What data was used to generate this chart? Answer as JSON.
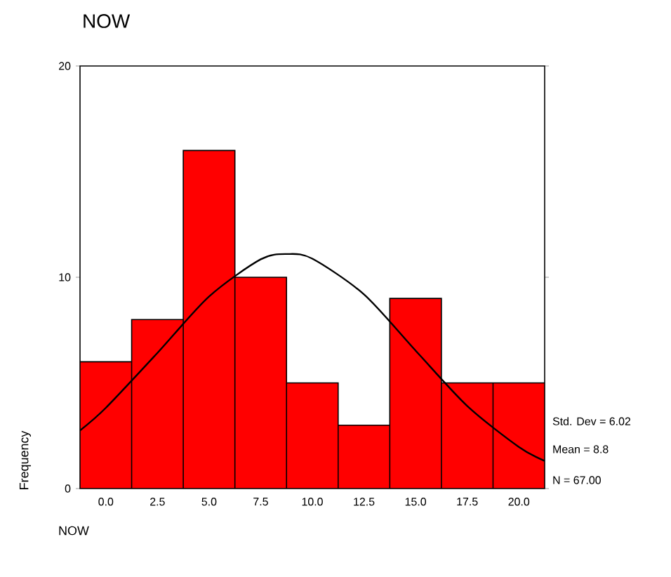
{
  "chart_data": {
    "type": "histogram",
    "title": "NOW",
    "xlabel": "NOW",
    "ylabel": "Frequency",
    "bins": [
      -1.25,
      1.25,
      3.75,
      6.25,
      8.75,
      11.25,
      13.75,
      16.25,
      18.75,
      21.25
    ],
    "values": [
      6,
      8,
      16,
      10,
      5,
      3,
      9,
      5,
      5
    ],
    "color": "#ff0000",
    "series": [
      {
        "type": "line",
        "color": "#000000",
        "x": [
          -1.25,
          0,
          2.5,
          5,
          7.5,
          8.8,
          10,
          12.5,
          15,
          17.5,
          20,
          21.25
        ],
        "values": [
          2.75,
          3.82,
          6.42,
          9.09,
          10.85,
          11.1,
          10.88,
          9.19,
          6.53,
          3.91,
          1.97,
          1.31
        ]
      }
    ],
    "xlim": [
      -1.25,
      21.25
    ],
    "xticks": [
      {
        "value": 0,
        "label": "0.0"
      },
      {
        "value": 2.5,
        "label": "2.5"
      },
      {
        "value": 5,
        "label": "5.0"
      },
      {
        "value": 7.5,
        "label": "7.5"
      },
      {
        "value": 10,
        "label": "10.0"
      },
      {
        "value": 12.5,
        "label": "12.5"
      },
      {
        "value": 15,
        "label": "15.0"
      },
      {
        "value": 17.5,
        "label": "17.5"
      },
      {
        "value": 20,
        "label": "20.0"
      }
    ],
    "ylim": [
      0,
      20
    ],
    "yticks": [
      0,
      10,
      20
    ],
    "annotations": [
      "Std. Dev = 6.02",
      "Mean = 8.8",
      "N = 67.00"
    ]
  }
}
